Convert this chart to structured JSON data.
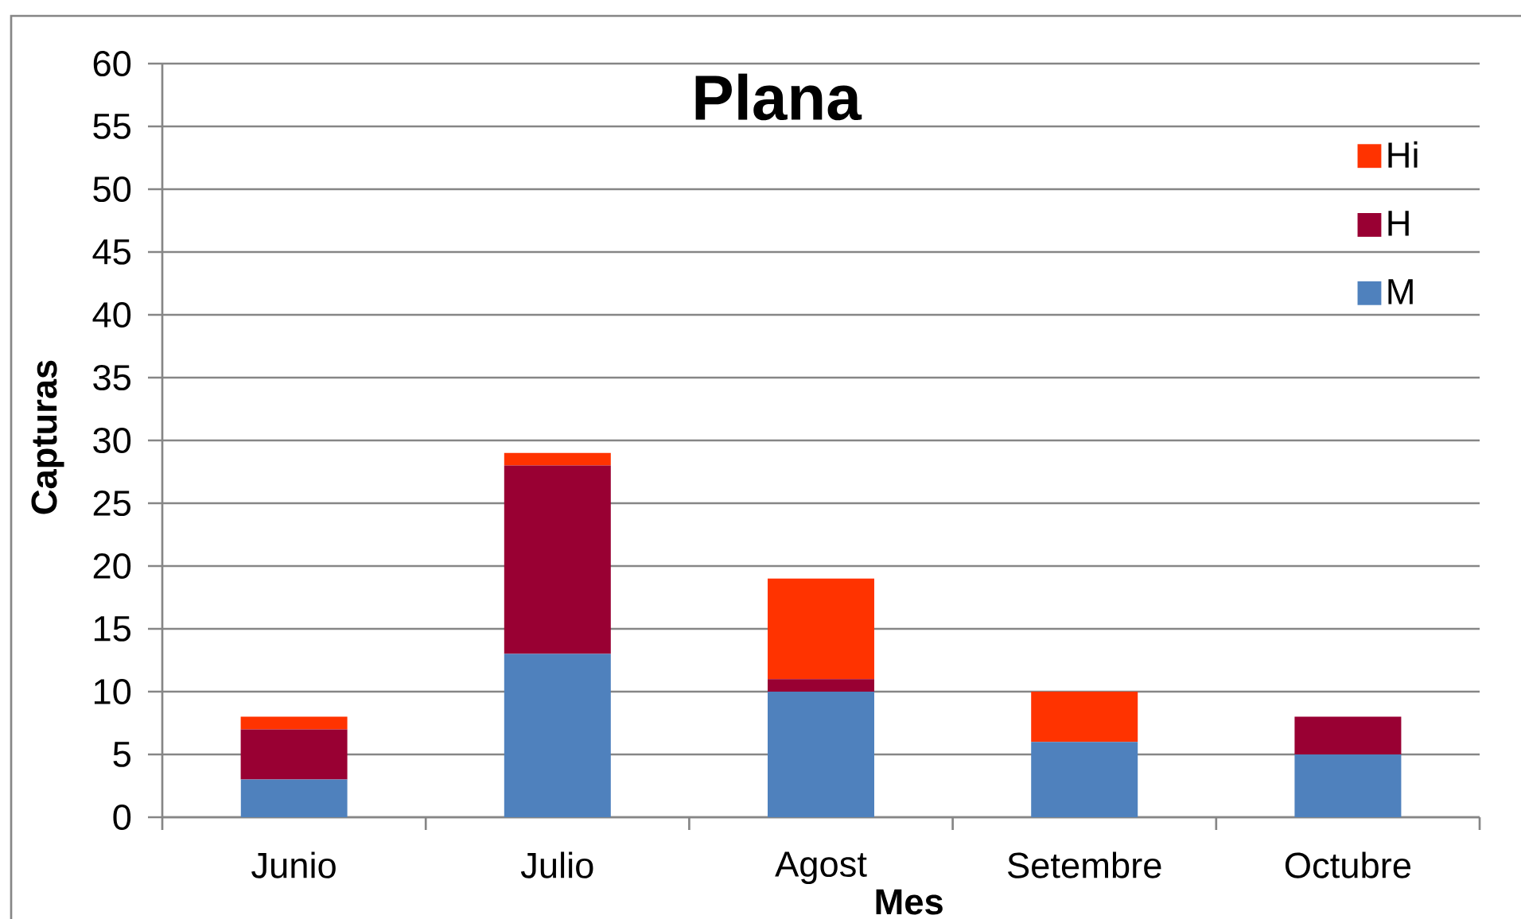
{
  "chart_data": {
    "type": "bar",
    "stacked": true,
    "title": "Plana",
    "xlabel": "Mes",
    "ylabel": "Capturas",
    "categories": [
      "Junio",
      "Julio",
      "Agost",
      "Setembre",
      "Octubre"
    ],
    "series": [
      {
        "name": "M",
        "color": "#4f81bd",
        "values": [
          3,
          13,
          10,
          6,
          5
        ]
      },
      {
        "name": "H",
        "color": "#990033",
        "values": [
          4,
          15,
          1,
          0,
          3
        ]
      },
      {
        "name": "Hi",
        "color": "#ff3300",
        "values": [
          1,
          1,
          8,
          4,
          0
        ]
      }
    ],
    "ylim": [
      0,
      60
    ],
    "yticks": [
      0,
      5,
      10,
      15,
      20,
      25,
      30,
      35,
      40,
      45,
      50,
      55,
      60
    ],
    "grid": "y",
    "legend": "top right"
  }
}
